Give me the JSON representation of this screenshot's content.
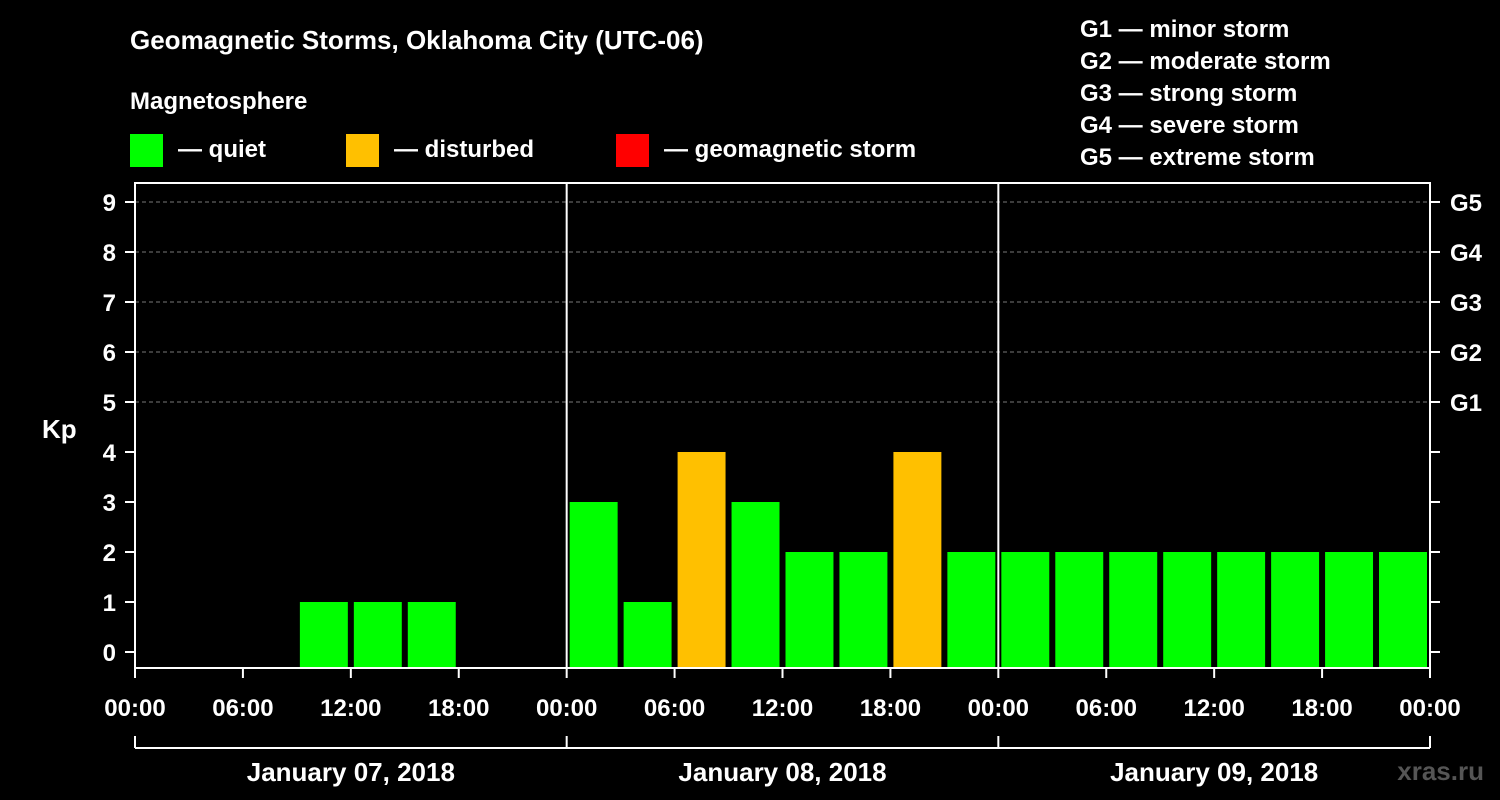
{
  "title": "Geomagnetic Storms, Oklahoma City (UTC-06)",
  "legend": {
    "heading": "Magnetosphere",
    "items": [
      {
        "label": "— quiet",
        "color": "#00ff00"
      },
      {
        "label": "— disturbed",
        "color": "#ffc000"
      },
      {
        "label": "— geomagnetic storm",
        "color": "#ff0000"
      }
    ]
  },
  "storm_scale": [
    {
      "code": "G1",
      "label": "G1 — minor storm"
    },
    {
      "code": "G2",
      "label": "G2 — moderate storm"
    },
    {
      "code": "G3",
      "label": "G3 — strong storm"
    },
    {
      "code": "G4",
      "label": "G4 — severe storm"
    },
    {
      "code": "G5",
      "label": "G5 — extreme storm"
    }
  ],
  "watermark": "xras.ru",
  "chart_data": {
    "type": "bar",
    "ylabel": "Kp",
    "ylim": [
      0,
      9
    ],
    "yticks": [
      "0",
      "1",
      "2",
      "3",
      "4",
      "5",
      "6",
      "7",
      "8",
      "9"
    ],
    "right_ticks": [
      {
        "kp": 5,
        "label": "G1"
      },
      {
        "kp": 6,
        "label": "G2"
      },
      {
        "kp": 7,
        "label": "G3"
      },
      {
        "kp": 8,
        "label": "G4"
      },
      {
        "kp": 9,
        "label": "G5"
      }
    ],
    "grid": "horizontal dashed at Kp 5–9",
    "xtick_labels": [
      "00:00",
      "06:00",
      "12:00",
      "18:00",
      "00:00",
      "06:00",
      "12:00",
      "18:00",
      "00:00",
      "06:00",
      "12:00",
      "18:00",
      "00:00"
    ],
    "days": [
      "January 07, 2018",
      "January 08, 2018",
      "January 09, 2018"
    ],
    "interval_hours": 3,
    "kp": [
      null,
      null,
      null,
      1,
      1,
      1,
      null,
      null,
      3,
      1,
      4,
      3,
      2,
      2,
      4,
      2,
      2,
      2,
      2,
      2,
      2,
      2,
      2,
      2
    ],
    "colors": {
      "quiet": "#00ff00",
      "disturbed": "#ffc000",
      "storm": "#ff0000"
    }
  }
}
